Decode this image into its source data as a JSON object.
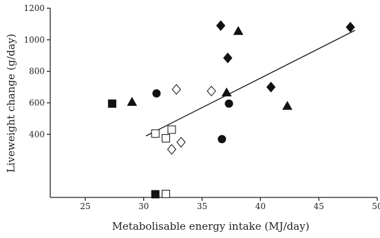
{
  "chart_data": {
    "type": "scatter",
    "title": "",
    "xlabel": "Metabolisable   energy intake (MJ/day)",
    "ylabel": "Liveweight change (g/day)",
    "xlim": [
      22,
      50
    ],
    "ylim": [
      0,
      1200
    ],
    "xticks": [
      25,
      30,
      35,
      40,
      45,
      50
    ],
    "yticks": [
      400,
      600,
      800,
      1000,
      1200
    ],
    "grid": false,
    "series": [
      {
        "marker": "filled-square",
        "points": [
          [
            27.3,
            595
          ],
          [
            31.0,
            20
          ]
        ]
      },
      {
        "marker": "filled-triangle",
        "points": [
          [
            29.0,
            605
          ],
          [
            37.1,
            665
          ],
          [
            38.1,
            1055
          ],
          [
            42.3,
            580
          ]
        ]
      },
      {
        "marker": "filled-circle",
        "points": [
          [
            31.1,
            660
          ],
          [
            37.3,
            595
          ],
          [
            36.7,
            370
          ]
        ]
      },
      {
        "marker": "filled-diamond",
        "points": [
          [
            36.6,
            1090
          ],
          [
            37.2,
            885
          ],
          [
            40.9,
            700
          ],
          [
            47.7,
            1080
          ]
        ]
      },
      {
        "marker": "open-diamond",
        "points": [
          [
            32.8,
            685
          ],
          [
            35.8,
            675
          ],
          [
            32.4,
            305
          ],
          [
            33.2,
            350
          ]
        ]
      },
      {
        "marker": "open-square",
        "points": [
          [
            31.0,
            405
          ],
          [
            31.9,
            375
          ],
          [
            32.4,
            430
          ],
          [
            31.9,
            22
          ]
        ]
      }
    ],
    "trend_line": {
      "x": [
        30.2,
        48.1
      ],
      "y": [
        390,
        1060
      ]
    }
  }
}
